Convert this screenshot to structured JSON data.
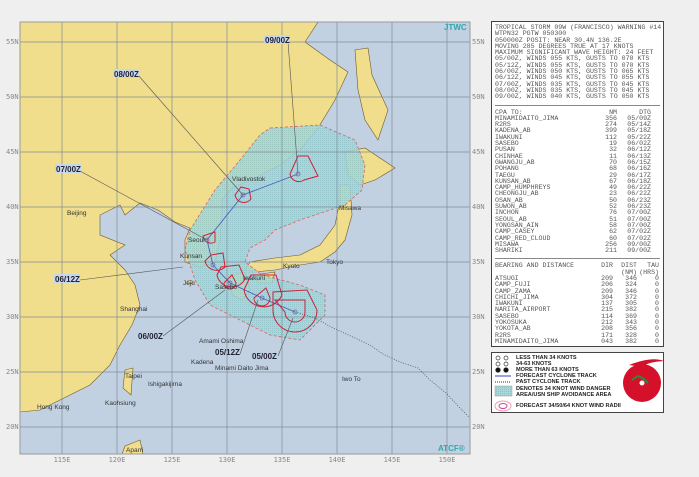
{
  "map": {
    "logo_top": "JTWC",
    "logo_bottom": "ATCF®",
    "lat_labels": [
      "55N",
      "50N",
      "45N",
      "40N",
      "35N",
      "30N",
      "25N",
      "20N"
    ],
    "lon_labels": [
      "115E",
      "120E",
      "125E",
      "130E",
      "135E",
      "140E",
      "145E",
      "150E"
    ],
    "track_labels": [
      "09/00Z",
      "08/00Z",
      "07/00Z",
      "06/12Z",
      "06/00Z",
      "05/12Z",
      "05/00Z"
    ],
    "cities": [
      "Beijing",
      "Vladivostok",
      "Misawa",
      "Seoul",
      "Kunsan",
      "Jeju",
      "Iwakuni",
      "Sasebo",
      "Kyoto",
      "Tokyo",
      "Shanghai",
      "Amami Oshima",
      "Kadena",
      "Minami Daito Jima",
      "Iwo To",
      "Taipei",
      "Ishigakijima",
      "Kaohsiung",
      "Hong Kong",
      "Aparri"
    ],
    "colors": {
      "land": "#f0de8c",
      "water": "#c2d1e2",
      "cone": "#a9d6d8",
      "radii": "#d0203a",
      "track": "#4a5fc0"
    }
  },
  "warning": {
    "header": [
      "TROPICAL STORM 09W (FRANCISCO) WARNING #14",
      "WTPN32 PGTW 050300",
      "050000Z POSIT: NEAR 30.4N 136.2E",
      "MOVING 285 DEGREES TRUE AT 17 KNOTS",
      "MAXIMUM SIGNIFICANT WAVE HEIGHT: 24 FEET"
    ],
    "forecasts": [
      "05/00Z, WINDS 055 KTS, GUSTS TO 070 KTS",
      "05/12Z, WINDS 055 KTS, GUSTS TO 070 KTS",
      "06/00Z, WINDS 050 KTS, GUSTS TO 065 KTS",
      "06/12Z, WINDS 045 KTS, GUSTS TO 055 KTS",
      "07/00Z, WINDS 035 KTS, GUSTS TO 045 KTS",
      "08/00Z, WINDS 035 KTS, GUSTS TO 045 KTS",
      "09/00Z, WINDS 040 KTS, GUSTS TO 050 KTS"
    ]
  },
  "cpa": {
    "headers": [
      "CPA TO:",
      "NM",
      "DTG"
    ],
    "rows": [
      [
        "MINAMIDAITO_JIMA",
        "356",
        "05/09Z"
      ],
      [
        "R2RS",
        "274",
        "05/14Z"
      ],
      [
        "KADENA_AB",
        "399",
        "05/18Z"
      ],
      [
        "IWAKUNI",
        "112",
        "05/22Z"
      ],
      [
        "SASEBO",
        "19",
        "06/02Z"
      ],
      [
        "PUSAN",
        "32",
        "06/12Z"
      ],
      [
        "CHINHAE",
        "11",
        "06/13Z"
      ],
      [
        "GWANGJU_AB",
        "70",
        "06/15Z"
      ],
      [
        "POHANG",
        "68",
        "06/16Z"
      ],
      [
        "TAEGU",
        "29",
        "06/17Z"
      ],
      [
        "KUNSAN_AB",
        "67",
        "06/18Z"
      ],
      [
        "CAMP_HUMPHREYS",
        "49",
        "06/22Z"
      ],
      [
        "CHEONGJU_AB",
        "23",
        "06/22Z"
      ],
      [
        "OSAN_AB",
        "50",
        "06/23Z"
      ],
      [
        "SUWON_AB",
        "52",
        "06/23Z"
      ],
      [
        "INCHON",
        "76",
        "07/00Z"
      ],
      [
        "SEOUL_AB",
        "51",
        "07/00Z"
      ],
      [
        "YONGSAN_AIN",
        "58",
        "07/00Z"
      ],
      [
        "CAMP_CASEY",
        "62",
        "07/02Z"
      ],
      [
        "CAMP_RED_CLOUD",
        "60",
        "07/02Z"
      ],
      [
        "MISAWA",
        "256",
        "09/00Z"
      ],
      [
        "SHARIKI",
        "211",
        "09/00Z"
      ]
    ]
  },
  "bearing": {
    "headers": [
      "BEARING AND DISTANCE",
      "DIR",
      "DIST",
      "TAU"
    ],
    "units": [
      "(NM)",
      "(HRS)"
    ],
    "rows": [
      [
        "ATSUGI",
        "209",
        "346",
        "0"
      ],
      [
        "CAMP_FUJI",
        "206",
        "324",
        "0"
      ],
      [
        "CAMP_ZAMA",
        "209",
        "346",
        "0"
      ],
      [
        "CHICHI_JIMA",
        "304",
        "372",
        "0"
      ],
      [
        "IWAKUNI",
        "137",
        "305",
        "0"
      ],
      [
        "NARITA_AIRPORT",
        "215",
        "382",
        "0"
      ],
      [
        "SASEBO",
        "114",
        "369",
        "0"
      ],
      [
        "YOKOSUKA",
        "212",
        "343",
        "0"
      ],
      [
        "YOKOTA_AB",
        "208",
        "356",
        "0"
      ],
      [
        "R2RS",
        "171",
        "328",
        "0"
      ],
      [
        "MINAMIDAITO_JIMA",
        "043",
        "382",
        "0"
      ]
    ]
  },
  "legend": [
    "LESS THAN 34 KNOTS",
    "34-63 KNOTS",
    "MORE THAN 63 KNOTS",
    "FORECAST CYCLONE TRACK",
    "PAST CYCLONE TRACK",
    "DENOTES 34 KNOT WIND DANGER",
    "AREA/USN SHIP AVOIDANCE AREA",
    "FORECAST 34/50/64 KNOT WIND RADII"
  ]
}
